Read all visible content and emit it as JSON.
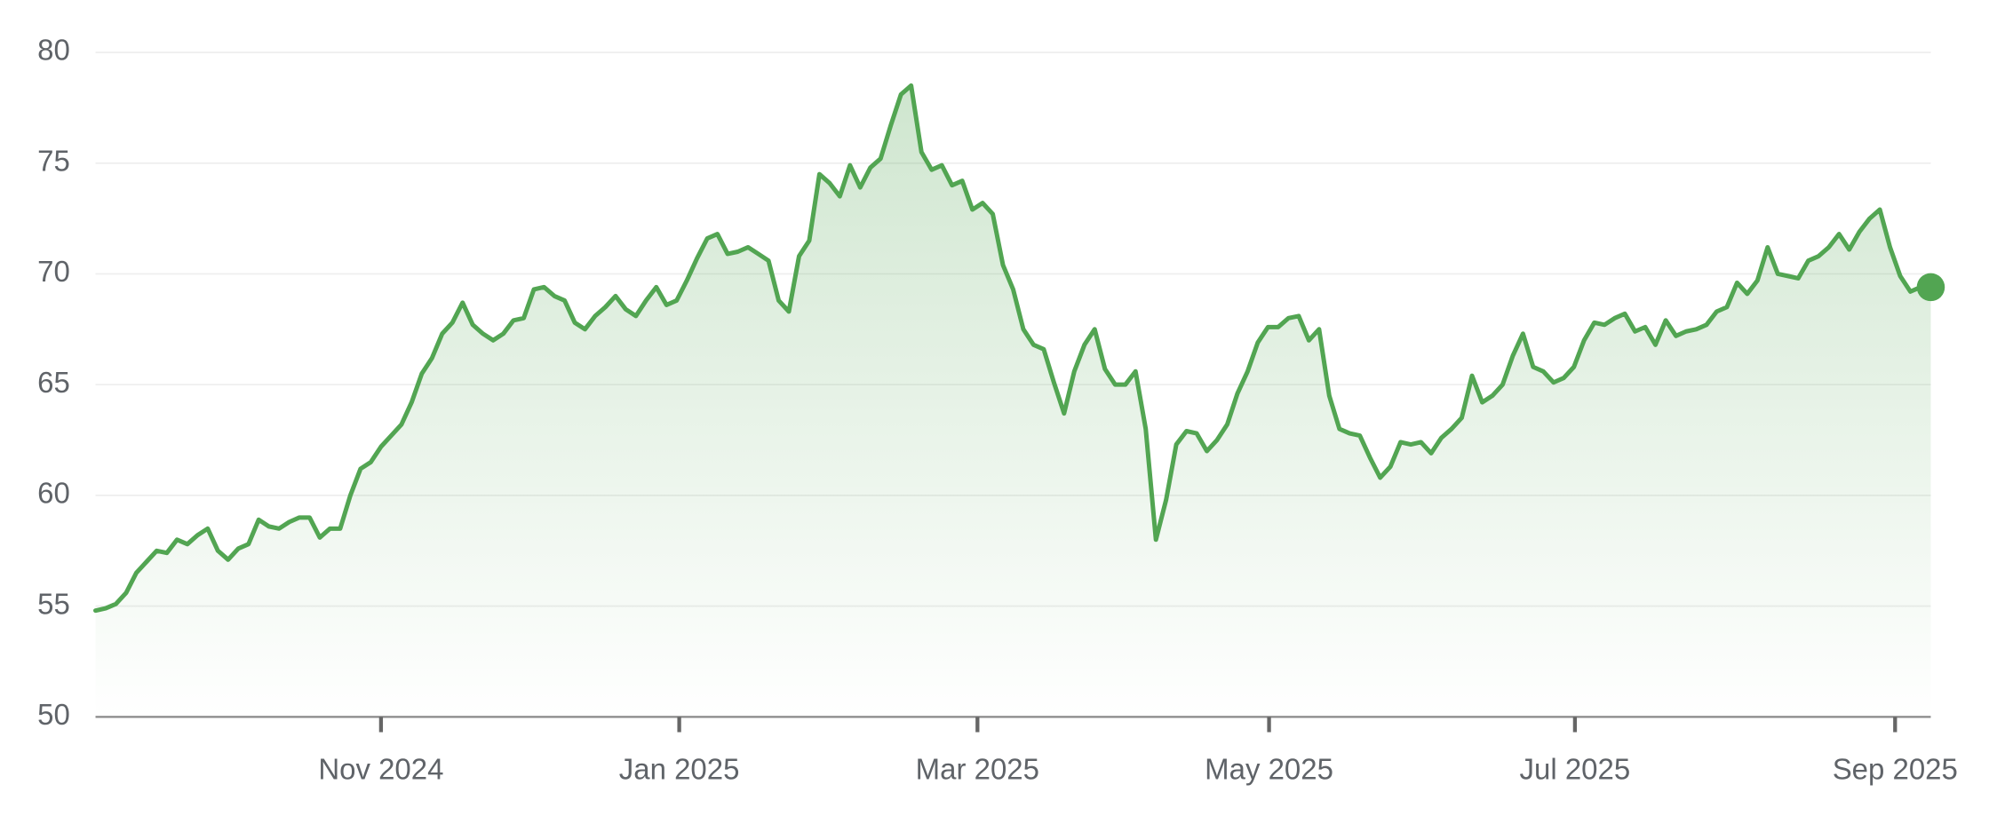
{
  "chart_data": {
    "type": "line",
    "color": "#52a552",
    "values": [
      54.8,
      54.9,
      55.1,
      55.6,
      56.5,
      57.0,
      57.5,
      57.4,
      58.0,
      57.8,
      58.2,
      58.5,
      57.5,
      57.1,
      57.6,
      57.8,
      58.9,
      58.6,
      58.5,
      58.8,
      59.0,
      59.0,
      58.1,
      58.5,
      58.5,
      60.0,
      61.2,
      61.5,
      62.2,
      62.7,
      63.2,
      64.2,
      65.5,
      66.2,
      67.3,
      67.8,
      68.7,
      67.7,
      67.3,
      67.0,
      67.3,
      67.9,
      68.0,
      69.3,
      69.4,
      69.0,
      68.8,
      67.8,
      67.5,
      68.1,
      68.5,
      69.0,
      68.4,
      68.1,
      68.8,
      69.4,
      68.6,
      68.8,
      69.7,
      70.7,
      71.6,
      71.8,
      70.9,
      71.0,
      71.2,
      70.9,
      70.6,
      68.8,
      68.3,
      70.8,
      71.5,
      74.5,
      74.1,
      73.5,
      74.9,
      73.9,
      74.8,
      75.2,
      76.7,
      78.1,
      78.5,
      75.5,
      74.7,
      74.9,
      74.0,
      74.2,
      72.9,
      73.2,
      72.7,
      70.4,
      69.3,
      67.5,
      66.8,
      66.6,
      65.1,
      63.7,
      65.6,
      66.8,
      67.5,
      65.7,
      65.0,
      65.0,
      65.6,
      63.0,
      58.0,
      59.8,
      62.3,
      62.9,
      62.8,
      62.0,
      62.5,
      63.2,
      64.6,
      65.6,
      66.9,
      67.6,
      67.6,
      68.0,
      68.1,
      67.0,
      67.5,
      64.5,
      63.0,
      62.8,
      62.7,
      61.7,
      60.8,
      61.3,
      62.4,
      62.3,
      62.4,
      61.9,
      62.6,
      63.0,
      63.5,
      65.4,
      64.2,
      64.5,
      65.0,
      66.3,
      67.3,
      65.8,
      65.6,
      65.1,
      65.3,
      65.8,
      67.0,
      67.8,
      67.7,
      68.0,
      68.2,
      67.4,
      67.6,
      66.8,
      67.9,
      67.2,
      67.4,
      67.5,
      67.7,
      68.3,
      68.5,
      69.6,
      69.1,
      69.7,
      71.2,
      70.0,
      69.9,
      69.8,
      70.6,
      70.8,
      71.2,
      71.8,
      71.1,
      71.9,
      72.5,
      72.9,
      71.2,
      69.9,
      69.2,
      69.4,
      69.4
    ],
    "xlim": [
      0,
      180
    ],
    "xticks": [
      {
        "value": 28,
        "label": "Nov 2024"
      },
      {
        "value": 57.25,
        "label": "Jan 2025"
      },
      {
        "value": 86.5,
        "label": "Mar 2025"
      },
      {
        "value": 115.1,
        "label": "May 2025"
      },
      {
        "value": 145.1,
        "label": "Jul 2025"
      },
      {
        "value": 176.5,
        "label": "Sep 2025"
      }
    ],
    "ylim": [
      50,
      80
    ],
    "yticks": [
      50,
      55,
      60,
      65,
      70,
      75,
      80
    ],
    "grid": true
  }
}
